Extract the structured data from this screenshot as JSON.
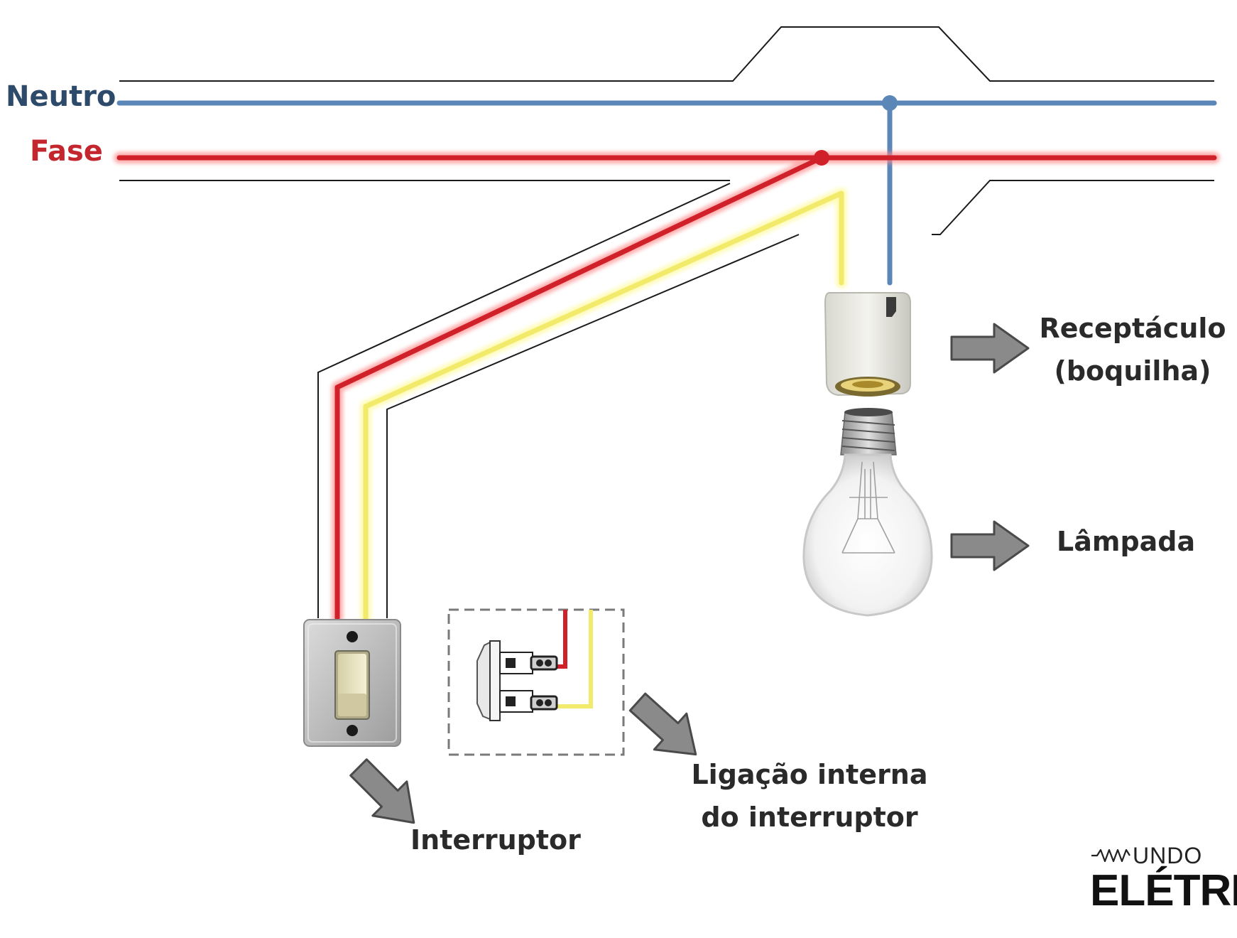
{
  "labels": {
    "neutro": "Neutro",
    "fase": "Fase",
    "receptaculo_line1": "Receptáculo",
    "receptaculo_line2": "(boquilha)",
    "lampada": "Lâmpada",
    "ligacao_line1": "Ligação interna",
    "ligacao_line2": "do interruptor",
    "interruptor": "Interruptor"
  },
  "logo": {
    "top": "UNDO",
    "bottom": "ELÉTRIC"
  },
  "colors": {
    "neutral_wire": "#5b86b8",
    "phase_wire": "#d0202a",
    "return_wire": "#f2ea6a",
    "conduit": "#1a1a1a",
    "neutral_text": "#2e4a6b",
    "phase_text": "#c4262e",
    "arrow": "#8a8a8a"
  }
}
